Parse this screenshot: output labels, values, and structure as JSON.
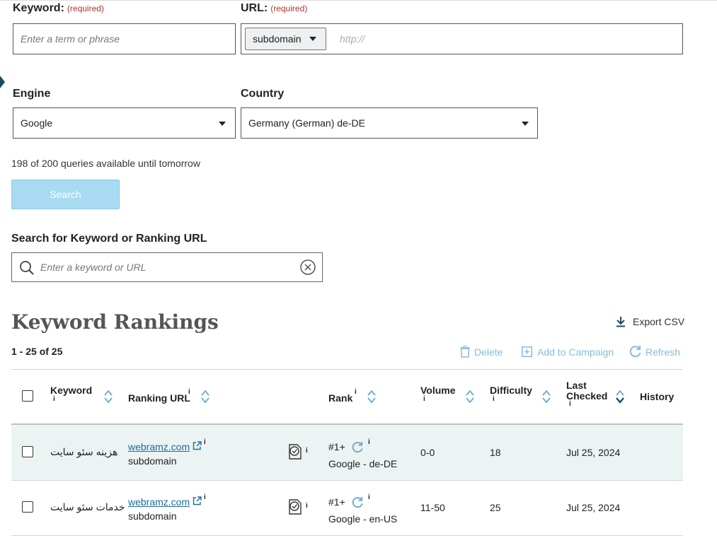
{
  "form": {
    "keyword_label": "Keyword:",
    "keyword_required": "(required)",
    "keyword_placeholder": "Enter a term or phrase",
    "url_label": "URL:",
    "url_required": "(required)",
    "url_scope": "subdomain",
    "url_placeholder": "http://",
    "engine_label": "Engine",
    "engine_value": "Google",
    "country_label": "Country",
    "country_value": "Germany (German) de-DE",
    "queries_text": "198 of 200 queries available until tomorrow",
    "search_button": "Search"
  },
  "filter": {
    "label": "Search for Keyword or Ranking URL",
    "placeholder": "Enter a keyword or URL"
  },
  "rankings": {
    "title": "Keyword Rankings",
    "export_label": "Export CSV",
    "count_text": "1 - 25 of 25",
    "actions": {
      "delete": "Delete",
      "add_to_campaign": "Add to Campaign",
      "refresh": "Refresh"
    },
    "columns": {
      "keyword": "Keyword",
      "ranking_url": "Ranking URL",
      "rank": "Rank",
      "volume": "Volume",
      "difficulty": "Difficulty",
      "last_checked_1": "Last",
      "last_checked_2": "Checked",
      "history": "History"
    },
    "info_glyph": "i",
    "rows": [
      {
        "keyword": "هزینه سئو سایت",
        "url": "webramz.com",
        "url_scope": "subdomain",
        "rank": "#1+",
        "rank_engine": "Google - de-DE",
        "volume": "0-0",
        "difficulty": "18",
        "last_checked": "Jul 25, 2024"
      },
      {
        "keyword": "خدمات سئو سایت",
        "url": "webramz.com",
        "url_scope": "subdomain",
        "rank": "#1+",
        "rank_engine": "Google - en-US",
        "volume": "11-50",
        "difficulty": "25",
        "last_checked": "Jul 25, 2024"
      }
    ]
  },
  "colors": {
    "accent_light": "#a8dbf1",
    "link": "#1a6c9c",
    "row_highlight": "#ecf3f3",
    "action_disabled": "#86bcd8",
    "sort_icon": "#6aaad0"
  },
  "icons": [
    "caret-left-icon",
    "chevron-down-icon",
    "search-icon",
    "clear-icon",
    "download-icon",
    "trash-icon",
    "plus-square-icon",
    "refresh-icon",
    "sort-icon",
    "external-link-icon",
    "page-check-icon"
  ]
}
